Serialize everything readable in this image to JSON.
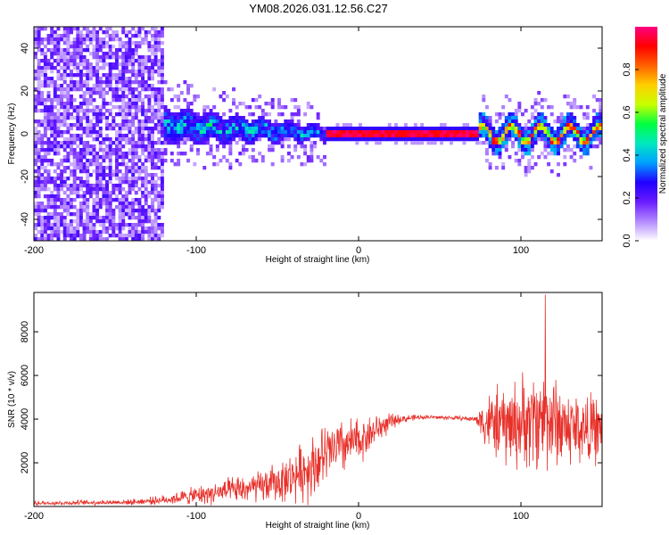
{
  "title": "YM08.2026.031.12.56.C27",
  "chart_data": [
    {
      "type": "heatmap",
      "name": "spectrogram",
      "xlabel": "Height of straight line (km)",
      "ylabel": "Frequency (Hz)",
      "xlim": [
        -200,
        150
      ],
      "ylim": [
        -50,
        50
      ],
      "xticks": [
        -200,
        -100,
        0,
        100
      ],
      "yticks": [
        -40,
        -20,
        0,
        20,
        40
      ],
      "colorbar": {
        "label": "Normalized spectral amplitude",
        "range": [
          0,
          1
        ],
        "ticks": [
          "0.0",
          "0.2",
          "0.4",
          "0.6",
          "0.8"
        ],
        "colors": [
          "#ffffff",
          "#b388ff",
          "#6a1bff",
          "#2000ff",
          "#00a0ff",
          "#00e8c0",
          "#00ff40",
          "#c8ff00",
          "#ffd000",
          "#ff6000",
          "#ff0000",
          "#ff0080"
        ]
      },
      "features": {
        "noise_region_x": [
          -200,
          -120
        ],
        "spread_band": {
          "x": [
            -120,
            -20
          ],
          "half_width_hz": [
            8,
            3
          ]
        },
        "line_region": {
          "x": [
            -20,
            75
          ],
          "value": 1.0
        },
        "oscillating_region": {
          "x": [
            75,
            150
          ],
          "half_width_hz": 6
        }
      }
    },
    {
      "type": "line",
      "name": "snr",
      "xlabel": "Height of straight line (km)",
      "ylabel": "SNR (10 * v/v)",
      "xlim": [
        -200,
        150
      ],
      "ylim": [
        0,
        9800
      ],
      "xticks": [
        -200,
        -100,
        0,
        100
      ],
      "yticks": [
        2000,
        4000,
        6000,
        8000
      ],
      "color": "#e8302a",
      "envelope": [
        {
          "x": -200,
          "base": 150,
          "amp": 120
        },
        {
          "x": -140,
          "base": 200,
          "amp": 150
        },
        {
          "x": -120,
          "base": 300,
          "amp": 250
        },
        {
          "x": -100,
          "base": 500,
          "amp": 500
        },
        {
          "x": -80,
          "base": 700,
          "amp": 700
        },
        {
          "x": -60,
          "base": 900,
          "amp": 900
        },
        {
          "x": -45,
          "base": 1200,
          "amp": 1200
        },
        {
          "x": -30,
          "base": 1800,
          "amp": 1800
        },
        {
          "x": -15,
          "base": 2600,
          "amp": 1700
        },
        {
          "x": 0,
          "base": 3000,
          "amp": 1300
        },
        {
          "x": 15,
          "base": 3700,
          "amp": 700
        },
        {
          "x": 25,
          "base": 4000,
          "amp": 250
        },
        {
          "x": 40,
          "base": 4100,
          "amp": 120
        },
        {
          "x": 60,
          "base": 4050,
          "amp": 120
        },
        {
          "x": 72,
          "base": 4000,
          "amp": 150
        },
        {
          "x": 78,
          "base": 3900,
          "amp": 1500
        },
        {
          "x": 90,
          "base": 3700,
          "amp": 2300
        },
        {
          "x": 105,
          "base": 3900,
          "amp": 2700
        },
        {
          "x": 115,
          "base": 4100,
          "amp": 2900
        },
        {
          "x": 130,
          "base": 3600,
          "amp": 2200
        },
        {
          "x": 150,
          "base": 3500,
          "amp": 1800
        }
      ],
      "peak": {
        "x": 115,
        "y": 9700
      }
    }
  ]
}
